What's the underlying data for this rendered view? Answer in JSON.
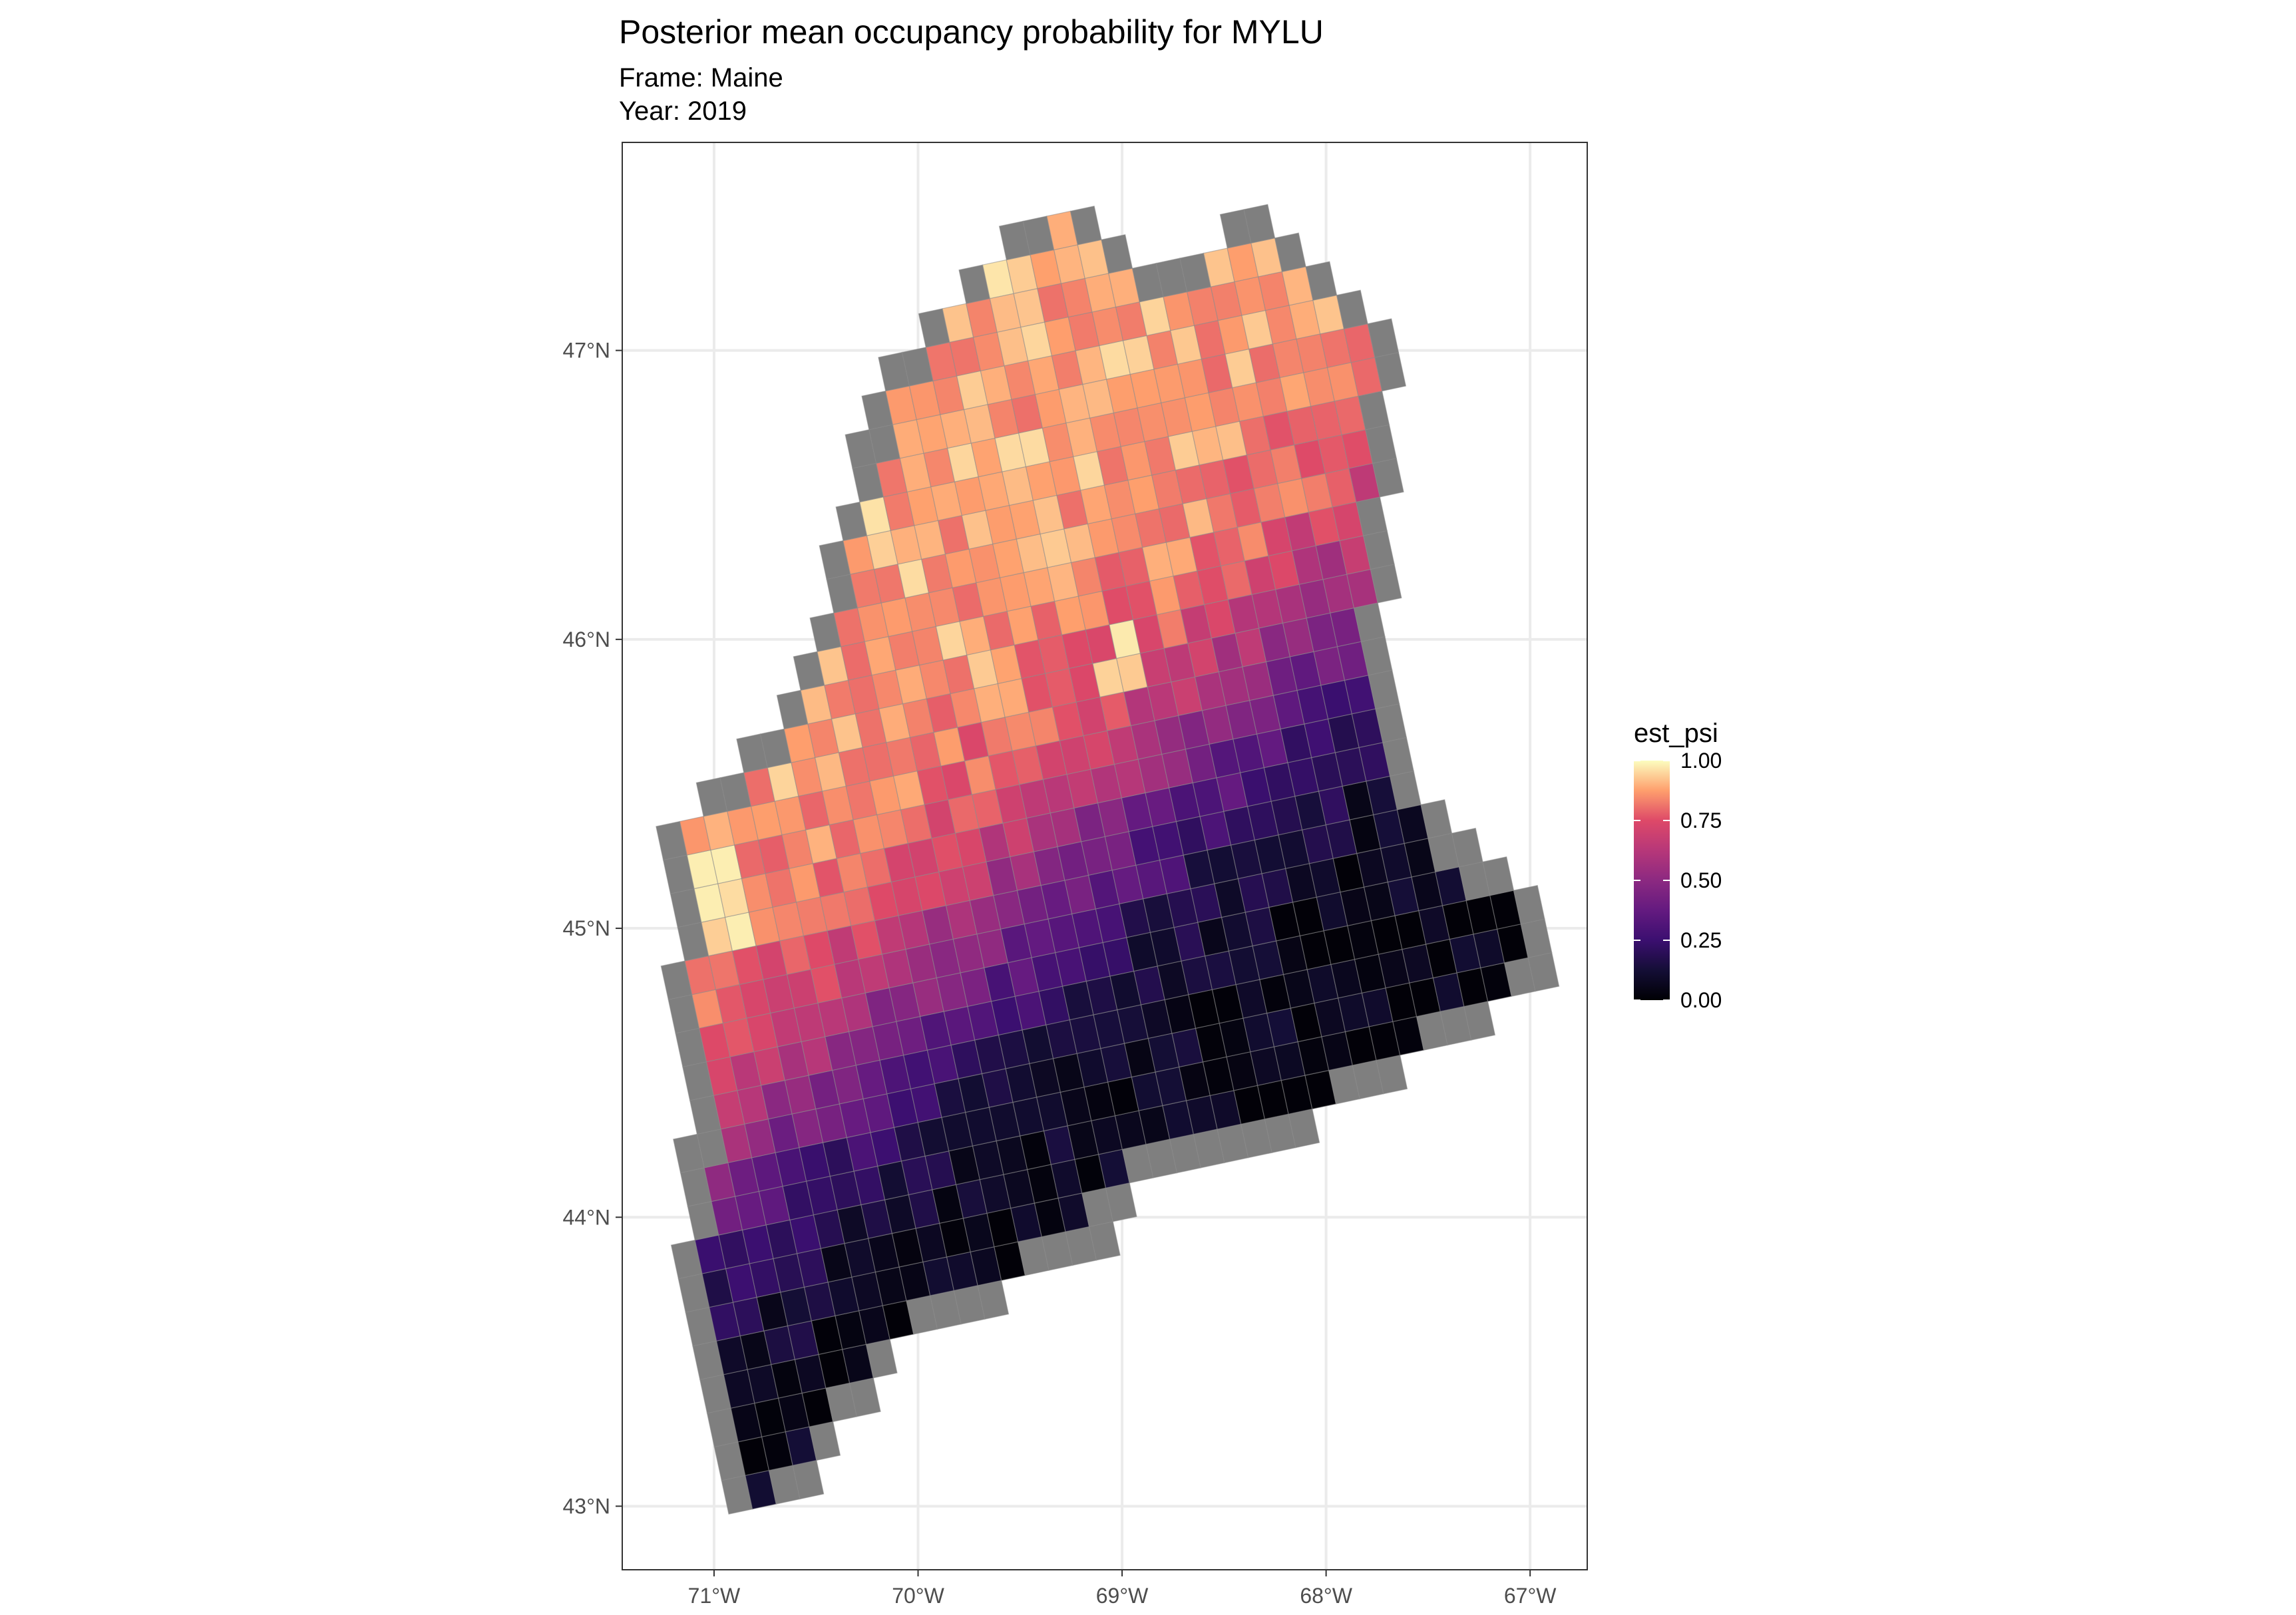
{
  "chart_data": {
    "type": "heatmap",
    "title": "Posterior mean occupancy probability for MYLU",
    "subtitle_lines": [
      "Frame: Maine",
      "Year: 2019"
    ],
    "xlim": [
      -71.45,
      -66.72
    ],
    "ylim": [
      42.78,
      47.72
    ],
    "x_ticks": [
      -71,
      -70,
      -69,
      -68,
      -67
    ],
    "x_tick_labels": [
      "71°W",
      "70°W",
      "69°W",
      "68°W",
      "67°W"
    ],
    "y_ticks": [
      43,
      44,
      45,
      46,
      47
    ],
    "y_tick_labels": [
      "43°N",
      "44°N",
      "45°N",
      "46°N",
      "47°N"
    ],
    "grid": true,
    "na_color": "#7f7f7f",
    "colorscale": "magma",
    "legend": {
      "title": "est_psi",
      "position": "right",
      "range": [
        0,
        1
      ],
      "ticks": [
        0,
        0.25,
        0.5,
        0.75,
        1
      ],
      "tick_labels": [
        "0.00",
        "0.25",
        "0.50",
        "0.75",
        "1.00"
      ]
    },
    "cell_size_km": 10,
    "cells_note": "Grid cells colored by est_psi; north-west of state high (~0.6-0.95), south and east low (~0.02-0.3); grey border cells are NA."
  }
}
